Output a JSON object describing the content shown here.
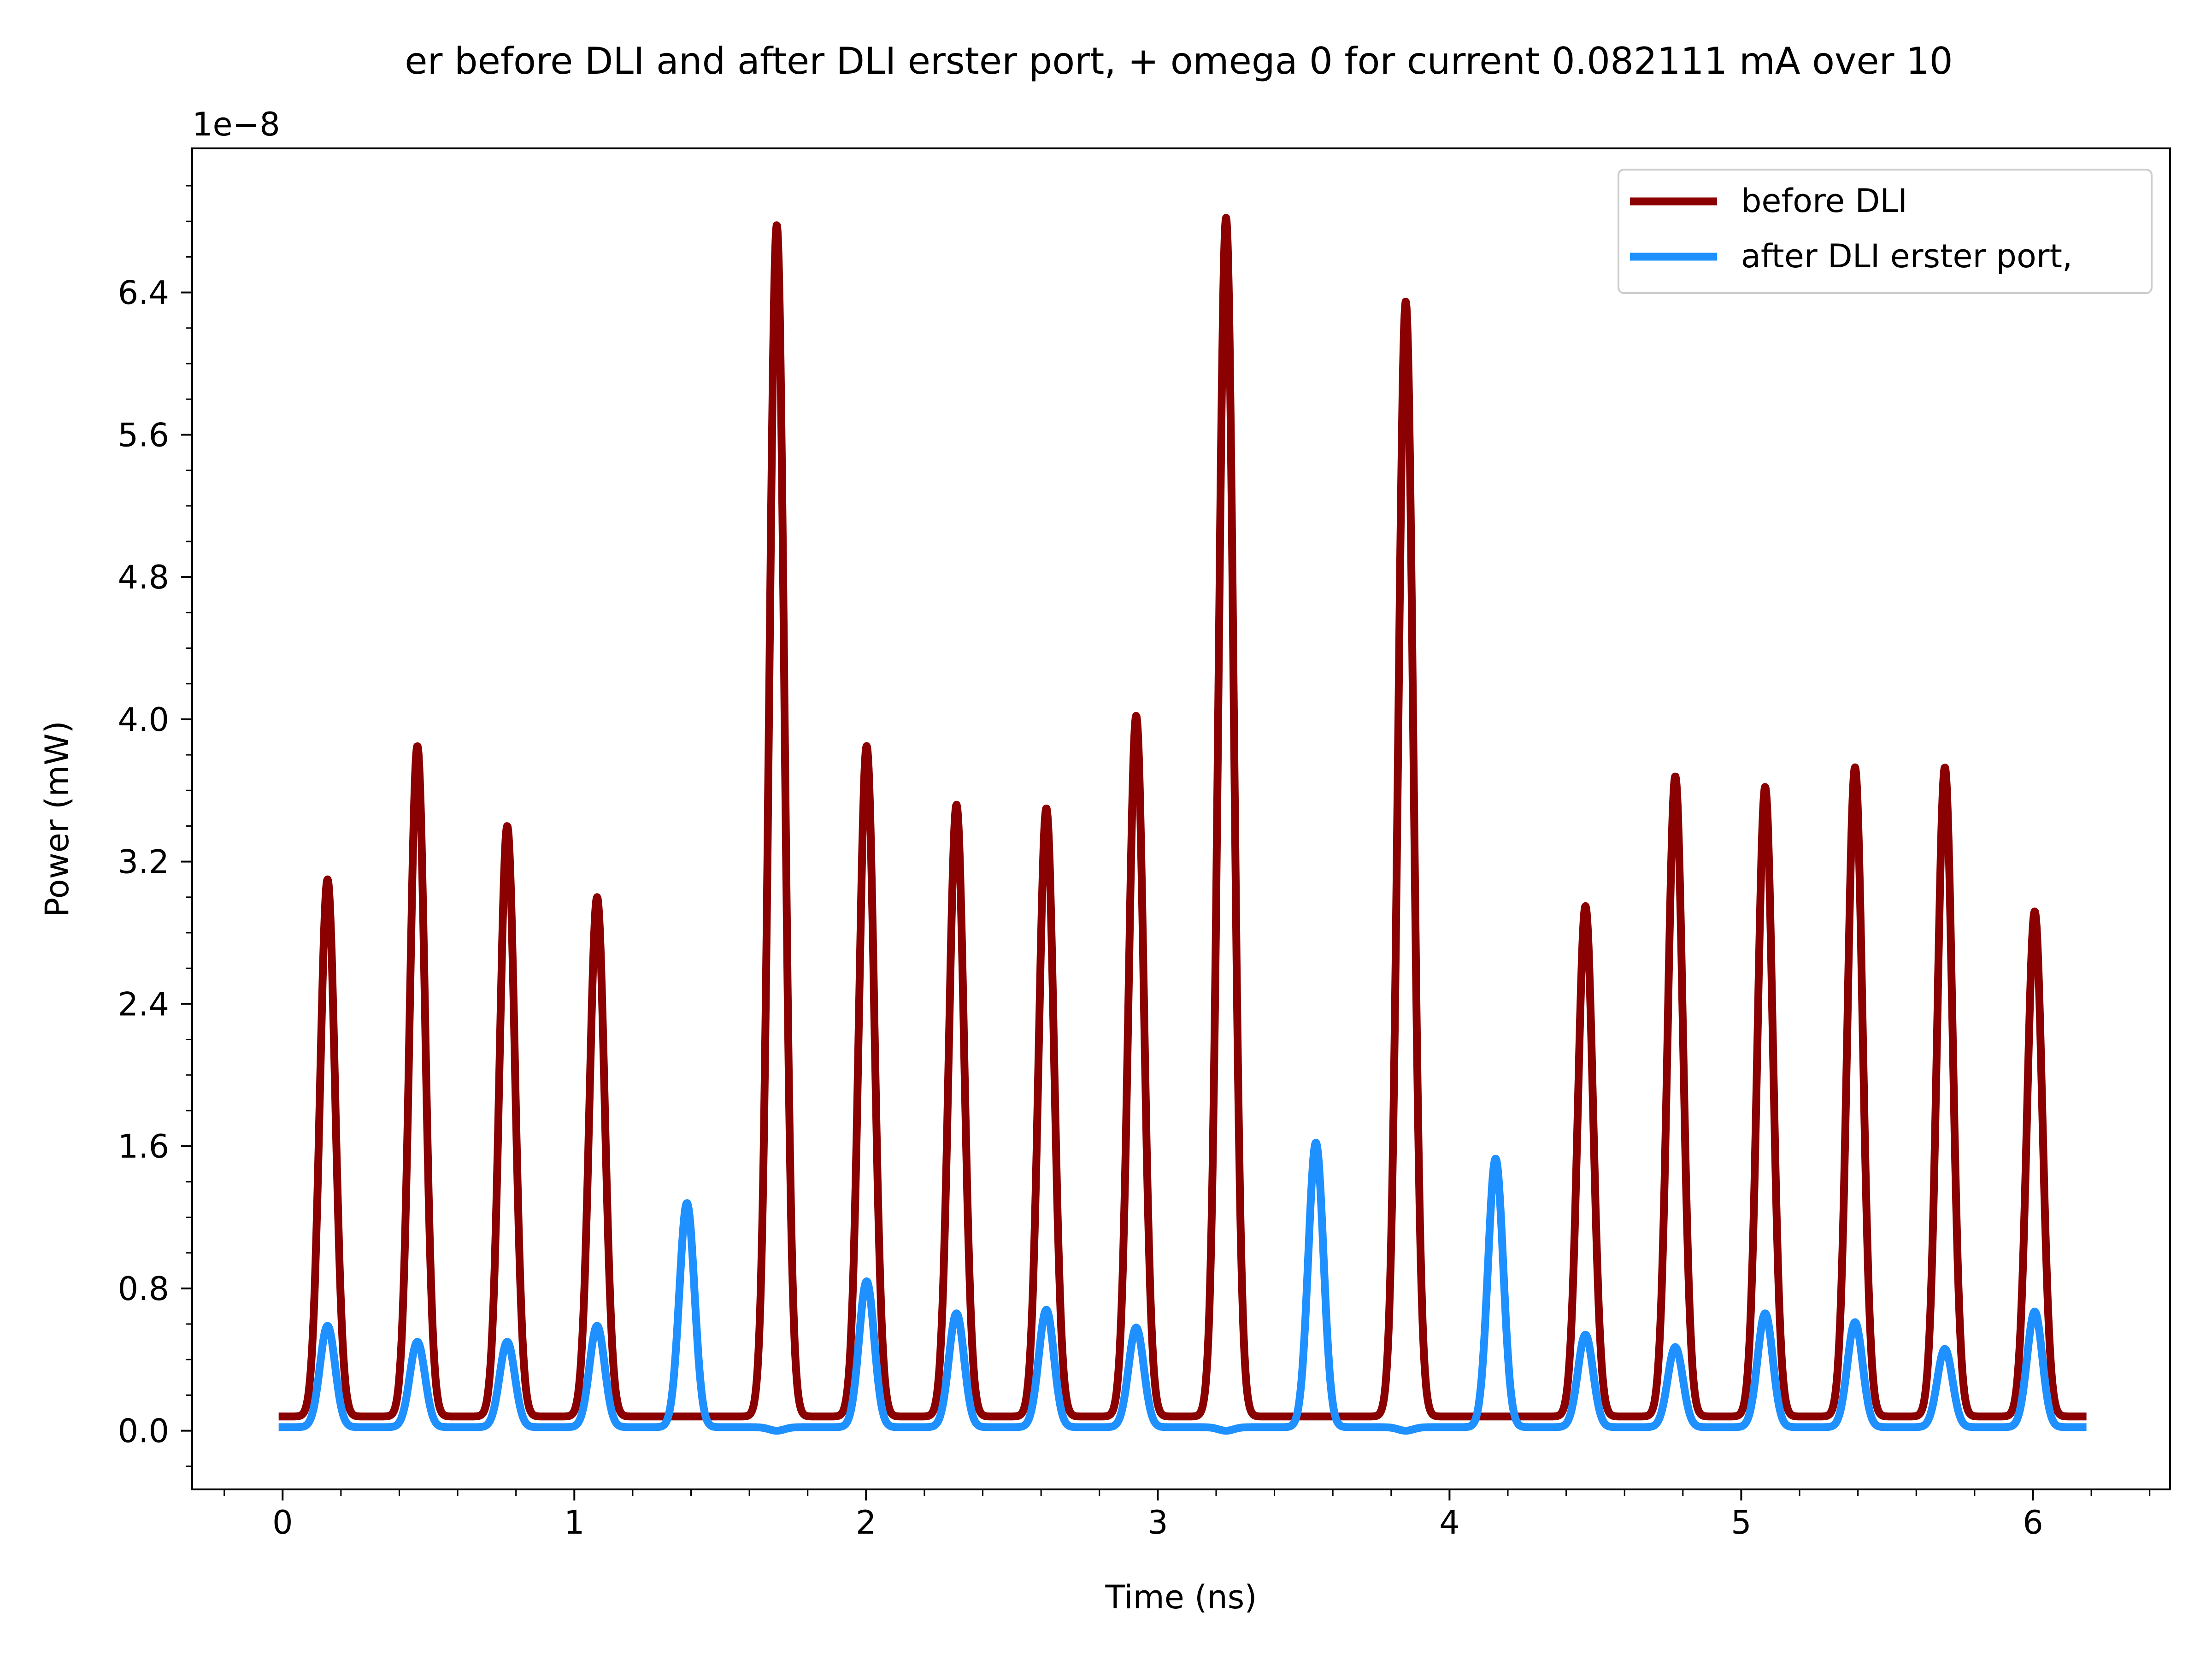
{
  "chart_data": {
    "type": "line",
    "title": "er before DLI and after DLI erster port, + omega 0 for current 0.082111 mA over 10",
    "xlabel": "Time (ns)",
    "ylabel": "Power (mW)",
    "y_offset_text": "1e−8",
    "y_scale": 1e-08,
    "xlim": [
      -0.31,
      6.47
    ],
    "ylim": [
      -0.33,
      7.21
    ],
    "x_ticks": [
      0,
      1,
      2,
      3,
      4,
      5,
      6
    ],
    "x_tick_labels": [
      "0",
      "1",
      "2",
      "3",
      "4",
      "5",
      "6"
    ],
    "y_ticks": [
      0.0,
      0.8,
      1.6,
      2.4,
      3.2,
      4.0,
      4.8,
      5.6,
      6.4
    ],
    "y_tick_labels": [
      "0.0",
      "0.8",
      "1.6",
      "2.4",
      "3.2",
      "4.0",
      "4.8",
      "5.6",
      "6.4"
    ],
    "grid": false,
    "legend_position": "top-right",
    "x_range": [
      0,
      6.17
    ],
    "pulse_period_ns": 0.308,
    "series": [
      {
        "name": "before DLI",
        "color": "#8b0000",
        "baseline": 0.08,
        "peak_times": [
          0.154,
          0.462,
          0.77,
          1.078,
          1.386,
          1.694,
          2.002,
          2.31,
          2.618,
          2.926,
          3.234,
          3.542,
          3.85,
          4.158,
          4.466,
          4.774,
          5.082,
          5.39,
          5.698,
          6.006
        ],
        "peak_values": [
          3.1,
          3.85,
          3.4,
          3.0,
          0.08,
          6.78,
          3.85,
          3.52,
          3.5,
          4.02,
          6.82,
          0.08,
          6.35,
          0.08,
          2.95,
          3.68,
          3.62,
          3.73,
          3.73,
          2.92
        ]
      },
      {
        "name": "after DLI erster port,",
        "color": "#1e90ff",
        "baseline": 0.02,
        "peak_times": [
          0.154,
          0.462,
          0.77,
          1.078,
          1.386,
          1.694,
          2.002,
          2.31,
          2.618,
          2.926,
          3.234,
          3.542,
          3.85,
          4.158,
          4.466,
          4.774,
          5.082,
          5.39,
          5.698,
          6.006
        ],
        "peak_values": [
          0.59,
          0.5,
          0.5,
          0.59,
          1.28,
          0.0,
          0.84,
          0.66,
          0.68,
          0.58,
          0.0,
          1.62,
          0.0,
          1.53,
          0.54,
          0.47,
          0.66,
          0.61,
          0.46,
          0.67
        ]
      }
    ]
  }
}
